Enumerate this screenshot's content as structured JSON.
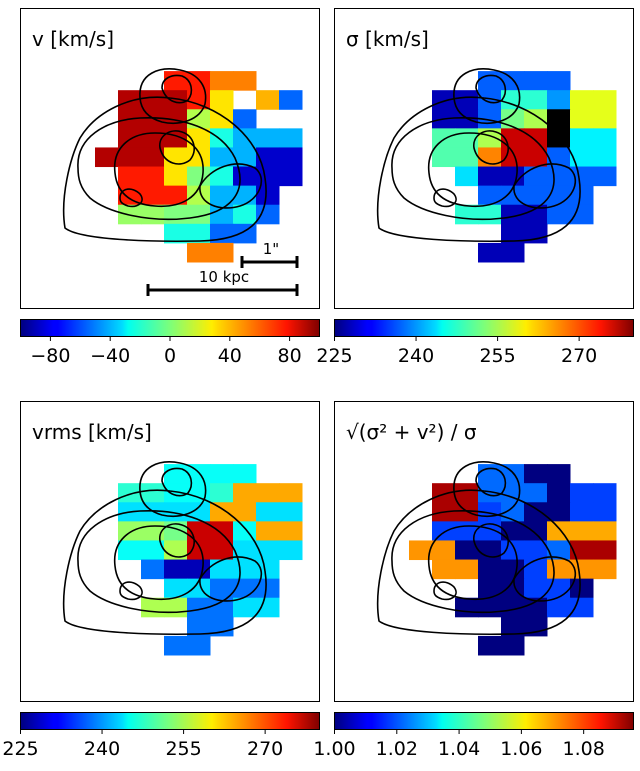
{
  "chart_data": [
    {
      "type": "heatmap",
      "title": "v [km/s]",
      "colormap": "jet",
      "colorbar": {
        "ticks": [
          "−80",
          "−40",
          "0",
          "40",
          "80"
        ],
        "tick_values": [
          -80,
          -40,
          0,
          40,
          80
        ],
        "range": [
          -100,
          100
        ]
      },
      "overlay": "black contours",
      "scalebars": [
        {
          "label": "1\""
        },
        {
          "label": "10 kpc"
        }
      ],
      "grid": [
        "..........",
        "....nnaa..",
        "..NNNnr.pA",
        "..NNNlrA..",
        "..NNNrcbbb",
        ".NNNrrbbCC",
        "..nnrjcCCC",
        "..nnnlbbC.",
        "..JJjjbcA.",
        "....ccAA..",
        ".....aa..."
      ],
      "color_keys": {
        "N": 90,
        "n": 70,
        "a": 50,
        "r": 30,
        "p": 40,
        "l": 10,
        "j": 0,
        "J": 5,
        "c": -20,
        "b": -40,
        "A": -55,
        "C": -85
      }
    },
    {
      "type": "heatmap",
      "title": "σ [km/s]",
      "colormap": "jet",
      "colorbar": {
        "ticks": [
          "225",
          "240",
          "255",
          "270"
        ],
        "tick_values": [
          225,
          240,
          255,
          270
        ],
        "range": [
          225,
          280
        ]
      },
      "overlay": "black contours",
      "grid": [
        "..........",
        "....bbbb..",
        "..CCbwwAyy",
        "..CCbhkcyy",
        "..mmkRRcaa",
        "..mmoRRbaa",
        "...dCCbbbb",
        "....bbbbb.",
        "...wwCCbb.",
        ".....CC...",
        "....CC...."
      ],
      "color_keys": {
        "C": 228,
        "b": 237,
        "A": 240,
        "d": 244,
        "a": 245,
        "w": 248,
        "m": 250,
        "h": 252,
        "k": 255,
        "y": 258,
        "o": 266,
        "R": 276
      }
    },
    {
      "type": "heatmap",
      "title": "vrms [km/s]",
      "colormap": "jet",
      "colorbar": {
        "ticks": [
          "225",
          "240",
          "255",
          "270"
        ],
        "tick_values": [
          225,
          240,
          255,
          270
        ],
        "range": [
          225,
          280
        ]
      },
      "overlay": "black contours",
      "grid": [
        "..........",
        "....dddd..",
        "..ccddcyyy",
        "..aaaayyaa",
        "..kkwRRdyy",
        "..ddhRRaaa",
        "...bCCaaa.",
        "....aabbb.",
        "...hhbbaa.",
        ".....bb...",
        "....bb...."
      ],
      "color_keys": {
        "C": 228,
        "b": 238,
        "d": 246,
        "c": 248,
        "a": 244,
        "w": 252,
        "h": 255,
        "k": 254,
        "y": 264,
        "R": 276
      }
    },
    {
      "type": "heatmap",
      "title": "√(σ² + v²) / σ",
      "colormap": "jet",
      "colorbar": {
        "ticks": [
          "1.00",
          "1.02",
          "1.04",
          "1.06",
          "1.08"
        ],
        "tick_values": [
          1.0,
          1.02,
          1.04,
          1.06,
          1.08
        ],
        "range": [
          1.0,
          1.096
        ]
      },
      "overlay": "black contours",
      "grid": [
        "..........",
        "....aaCC..",
        "..RRaaaCbb",
        "..RRbaCCbb",
        "..bbbCCyyy",
        ".ooCCbbaRR",
        "..ooCCbooo",
        "....CCbbC.",
        "...CCCCbb.",
        ".....CC...",
        "....CC...."
      ],
      "color_keys": {
        "C": 1.0,
        "b": 1.018,
        "a": 1.022,
        "y": 1.068,
        "o": 1.07,
        "R": 1.092
      }
    }
  ]
}
